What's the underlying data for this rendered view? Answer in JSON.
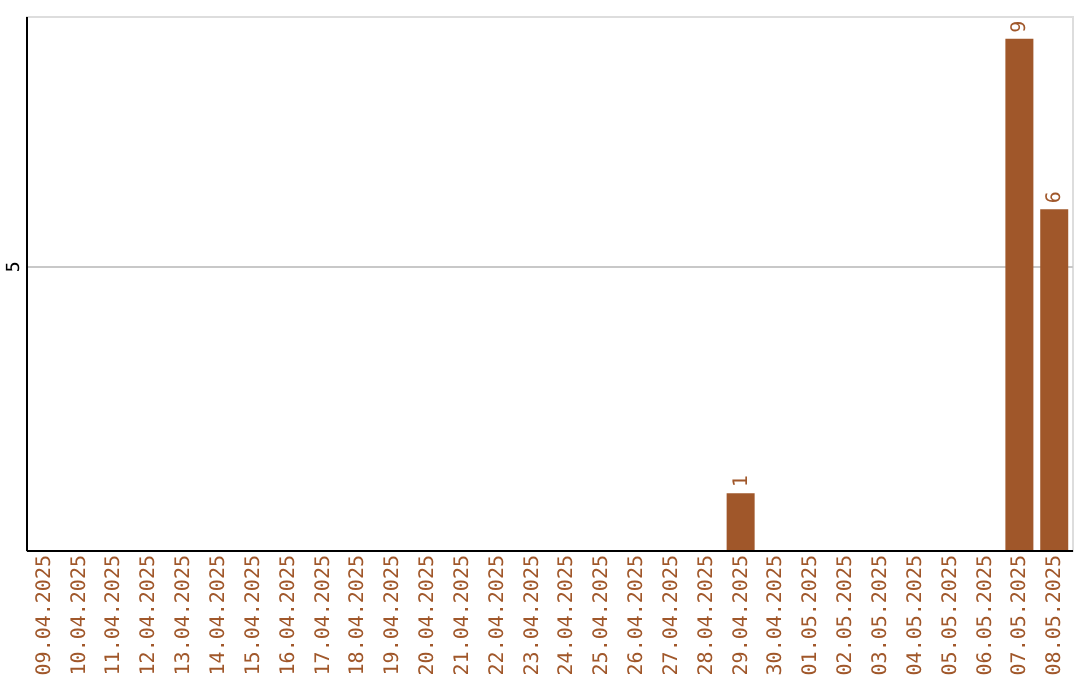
{
  "chart_data": {
    "type": "bar",
    "categories": [
      "09.04.2025",
      "10.04.2025",
      "11.04.2025",
      "12.04.2025",
      "13.04.2025",
      "14.04.2025",
      "15.04.2025",
      "16.04.2025",
      "17.04.2025",
      "18.04.2025",
      "19.04.2025",
      "20.04.2025",
      "21.04.2025",
      "22.04.2025",
      "23.04.2025",
      "24.04.2025",
      "25.04.2025",
      "26.04.2025",
      "27.04.2025",
      "28.04.2025",
      "29.04.2025",
      "30.04.2025",
      "01.05.2025",
      "02.05.2025",
      "03.05.2025",
      "04.05.2025",
      "05.05.2025",
      "06.05.2025",
      "07.05.2025",
      "08.05.2025"
    ],
    "values": [
      null,
      null,
      null,
      null,
      null,
      null,
      null,
      null,
      null,
      null,
      null,
      null,
      null,
      null,
      null,
      null,
      null,
      null,
      null,
      null,
      1,
      null,
      null,
      null,
      null,
      null,
      null,
      null,
      9,
      6
    ],
    "color": "#a0572a",
    "ylim": [
      0,
      9.4
    ],
    "yticks": [
      5
    ],
    "grid": "y",
    "data_labels": true
  }
}
